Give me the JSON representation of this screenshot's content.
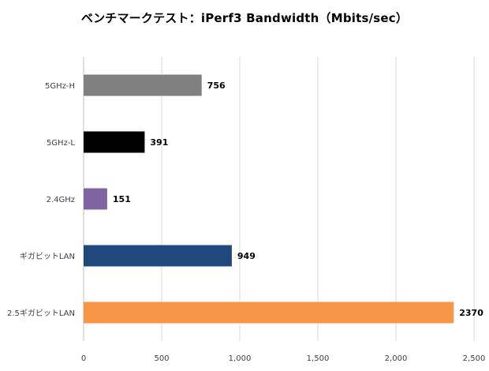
{
  "chart_data": {
    "type": "bar",
    "orientation": "horizontal",
    "title": "ベンチマークテスト：iPerf3 Bandwidth（Mbits/sec）",
    "xlabel": "",
    "ylabel": "",
    "categories": [
      "5GHz-H",
      "5GHz-L",
      "2.4GHz",
      "ギガビットLAN",
      "2.5ギガビットLAN"
    ],
    "values": [
      756,
      391,
      151,
      949,
      2370
    ],
    "value_labels": [
      "756",
      "391",
      "151",
      "949",
      "2370"
    ],
    "bar_colors": [
      "#808080",
      "#000000",
      "#8064a2",
      "#1f497d",
      "#f79646"
    ],
    "xlim": [
      0,
      2500
    ],
    "xticks": [
      0,
      500,
      1000,
      1500,
      2000,
      2500
    ],
    "xtick_labels": [
      "0",
      "500",
      "1,000",
      "1,500",
      "2,000",
      "2,500"
    ],
    "grid": "vertical",
    "grid_color": "#d9d9d9",
    "legend": "none"
  }
}
